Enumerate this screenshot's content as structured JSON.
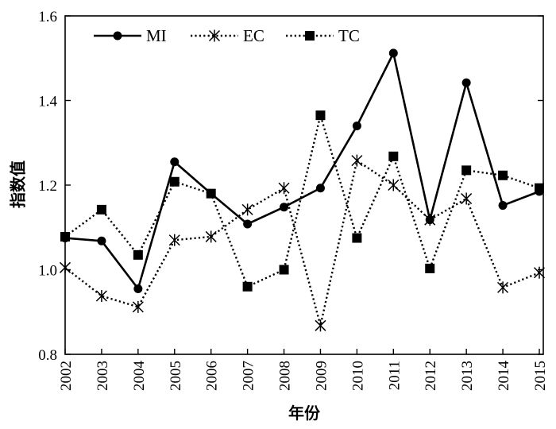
{
  "chart_data": {
    "type": "line",
    "x": [
      "2002",
      "2003",
      "2004",
      "2005",
      "2006",
      "2007",
      "2008",
      "2009",
      "2010",
      "2011",
      "2012",
      "2013",
      "2014",
      "2015"
    ],
    "xlabel": "年份",
    "ylabel": "指数值",
    "ylim": [
      0.8,
      1.6
    ],
    "yticks": [
      "0.8",
      "1.0",
      "1.2",
      "1.4",
      "1.6"
    ],
    "grid": false,
    "legend_position": "top-left",
    "series": [
      {
        "name": "MI",
        "style": "solid",
        "marker": "circle",
        "values": [
          1.075,
          1.068,
          0.955,
          1.255,
          1.18,
          1.108,
          1.148,
          1.193,
          1.34,
          1.512,
          1.118,
          1.442,
          1.152,
          1.185
        ]
      },
      {
        "name": "EC",
        "style": "dotted",
        "marker": "star",
        "values": [
          1.005,
          0.938,
          0.912,
          1.07,
          1.078,
          1.142,
          1.193,
          0.868,
          1.258,
          1.2,
          1.118,
          1.168,
          0.958,
          0.993
        ]
      },
      {
        "name": "TC",
        "style": "dotted",
        "marker": "square",
        "values": [
          1.078,
          1.142,
          1.035,
          1.208,
          1.18,
          0.96,
          1.0,
          1.365,
          1.075,
          1.268,
          1.003,
          1.235,
          1.223,
          1.193
        ]
      }
    ]
  }
}
